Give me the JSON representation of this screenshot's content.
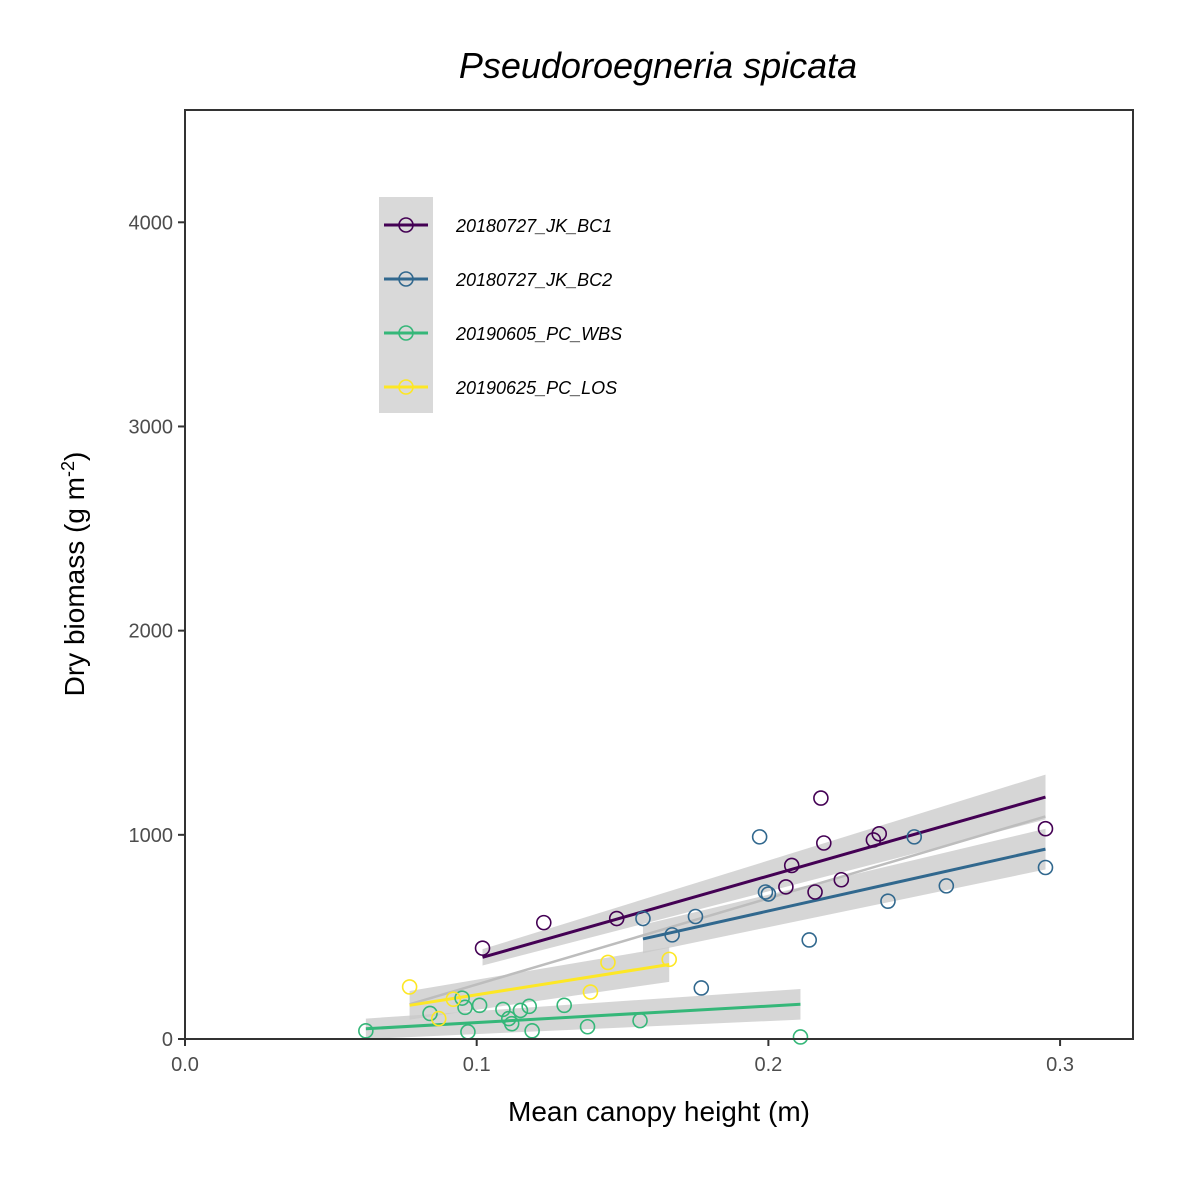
{
  "chart_data": {
    "type": "scatter",
    "title": "Pseudoroegneria spicata",
    "xlabel": "Mean canopy height (m)",
    "ylabel_main": "Dry biomass (g m",
    "ylabel_sup": "-2",
    "ylabel_close": ")",
    "xlim": [
      0.0,
      0.325
    ],
    "ylim": [
      0,
      4550
    ],
    "x_ticks": [
      0.0,
      0.1,
      0.2,
      0.3
    ],
    "x_tick_labels": [
      "0.0",
      "0.1",
      "0.2",
      "0.3"
    ],
    "y_ticks": [
      0,
      1000,
      2000,
      3000,
      4000
    ],
    "y_tick_labels": [
      "0",
      "1000",
      "2000",
      "3000",
      "4000"
    ],
    "legend_position": "top-left",
    "grid": false,
    "overall_fit": {
      "color": "#bdbdbd",
      "x": [
        0.077,
        0.295
      ],
      "y": [
        170,
        1090
      ]
    },
    "series": [
      {
        "name": "20180727_JK_BC1",
        "color": "#440154",
        "points": [
          [
            0.102,
            445
          ],
          [
            0.123,
            570
          ],
          [
            0.148,
            590
          ],
          [
            0.206,
            745
          ],
          [
            0.208,
            850
          ],
          [
            0.216,
            720
          ],
          [
            0.218,
            1180
          ],
          [
            0.219,
            960
          ],
          [
            0.225,
            780
          ],
          [
            0.236,
            975
          ],
          [
            0.238,
            1005
          ],
          [
            0.295,
            1030
          ]
        ],
        "fit": {
          "x": [
            0.102,
            0.295
          ],
          "y": [
            400,
            1185
          ],
          "se_lo": [
            360,
            1075
          ],
          "se_hi": [
            440,
            1295
          ]
        }
      },
      {
        "name": "20180727_JK_BC2",
        "color": "#31688e",
        "points": [
          [
            0.157,
            590
          ],
          [
            0.167,
            510
          ],
          [
            0.175,
            600
          ],
          [
            0.177,
            250
          ],
          [
            0.197,
            990
          ],
          [
            0.199,
            720
          ],
          [
            0.2,
            710
          ],
          [
            0.214,
            485
          ],
          [
            0.241,
            675
          ],
          [
            0.25,
            990
          ],
          [
            0.261,
            750
          ],
          [
            0.295,
            840
          ]
        ],
        "fit": {
          "x": [
            0.157,
            0.295
          ],
          "y": [
            490,
            930
          ],
          "se_lo": [
            420,
            830
          ],
          "se_hi": [
            560,
            1030
          ]
        }
      },
      {
        "name": "20190605_PC_WBS",
        "color": "#35b779",
        "points": [
          [
            0.062,
            40
          ],
          [
            0.084,
            125
          ],
          [
            0.095,
            200
          ],
          [
            0.096,
            155
          ],
          [
            0.097,
            35
          ],
          [
            0.101,
            165
          ],
          [
            0.109,
            145
          ],
          [
            0.111,
            100
          ],
          [
            0.112,
            75
          ],
          [
            0.115,
            140
          ],
          [
            0.118,
            160
          ],
          [
            0.119,
            40
          ],
          [
            0.13,
            165
          ],
          [
            0.138,
            60
          ],
          [
            0.156,
            90
          ],
          [
            0.211,
            10
          ]
        ],
        "fit": {
          "x": [
            0.062,
            0.211
          ],
          "y": [
            50,
            170
          ],
          "se_lo": [
            0,
            95
          ],
          "se_hi": [
            100,
            245
          ]
        }
      },
      {
        "name": "20190625_PC_LOS",
        "color": "#fde725",
        "points": [
          [
            0.077,
            255
          ],
          [
            0.087,
            100
          ],
          [
            0.092,
            195
          ],
          [
            0.139,
            230
          ],
          [
            0.145,
            375
          ],
          [
            0.166,
            390
          ]
        ],
        "fit": {
          "x": [
            0.077,
            0.166
          ],
          "y": [
            165,
            365
          ],
          "se_lo": [
            95,
            280
          ],
          "se_hi": [
            235,
            450
          ]
        }
      }
    ]
  }
}
